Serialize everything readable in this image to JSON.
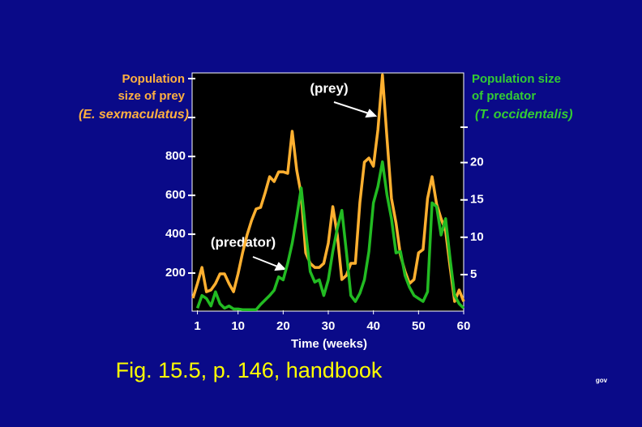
{
  "chart_data": {
    "type": "line",
    "y_label_lines": [
      "Population",
      "size of prey",
      "(E. sexmaculatus)"
    ],
    "y2_label_lines": [
      "Population size",
      "of predator",
      "(T. occidentalis)"
    ],
    "x_label": "Time (weeks)",
    "annotations": [
      "(prey)",
      "(predator)"
    ],
    "caption": "Fig. 15.5, p. 146, handbook",
    "footnote": "gov",
    "x": [
      0,
      1,
      2,
      3,
      4,
      5,
      6,
      7,
      8,
      9,
      10,
      11,
      12,
      13,
      14,
      15,
      16,
      17,
      18,
      19,
      20,
      21,
      22,
      23,
      24,
      25,
      26,
      27,
      28,
      29,
      30,
      31,
      32,
      33,
      34,
      35,
      36,
      37,
      38,
      39,
      40,
      41,
      42,
      43,
      44,
      45,
      46,
      47,
      48,
      49,
      50,
      51,
      52,
      53,
      54,
      55,
      56,
      57,
      58,
      59,
      60
    ],
    "series": [
      {
        "name": "prey",
        "color": "#ffb030",
        "values": [
          71,
          146,
          229,
          104,
          113,
          146,
          196,
          196,
          146,
          104,
          196,
          304,
          396,
          471,
          530,
          538,
          613,
          696,
          671,
          721,
          721,
          713,
          930,
          730,
          604,
          304,
          250,
          229,
          229,
          250,
          354,
          542,
          396,
          167,
          188,
          250,
          250,
          563,
          771,
          792,
          750,
          938,
          1220,
          896,
          584,
          459,
          292,
          209,
          146,
          167,
          304,
          321,
          584,
          696,
          555,
          480,
          417,
          229,
          54,
          113,
          54
        ]
      },
      {
        "name": "predator",
        "color": "#22bb22",
        "axis": "y2",
        "values": [
          null,
          0.5,
          2.2,
          1.8,
          0.8,
          2.7,
          1.1,
          0.5,
          0.8,
          0.4,
          0.4,
          0.3,
          0.3,
          0.3,
          0.3,
          1,
          1.6,
          2.2,
          2.9,
          4.7,
          4.3,
          6.5,
          9.2,
          12.7,
          16.6,
          10.8,
          5.4,
          4,
          4.3,
          2.2,
          4.3,
          8.1,
          11.2,
          13.6,
          8.1,
          2.2,
          1.4,
          2.5,
          4.3,
          8.1,
          14.6,
          16.8,
          20.1,
          15.7,
          12.5,
          7.9,
          8.1,
          4.9,
          3.3,
          2.2,
          1.8,
          1.4,
          2.7,
          14.6,
          14.1,
          10.3,
          12.5,
          7.1,
          2.2,
          1.1,
          0.5
        ]
      }
    ],
    "xlim": [
      0,
      60
    ],
    "xticks": [
      1,
      10,
      20,
      30,
      40,
      50,
      60
    ],
    "ylim": [
      0,
      1230
    ],
    "yticks": [
      200,
      400,
      600,
      800
    ],
    "y2lim": [
      0,
      32
    ],
    "y2ticks": [
      5,
      10,
      15,
      20
    ],
    "grid": false
  }
}
